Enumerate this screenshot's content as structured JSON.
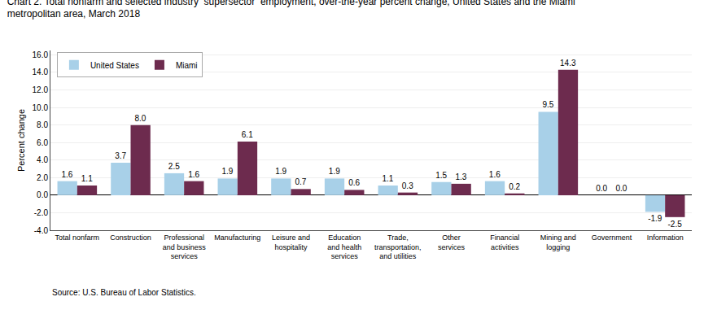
{
  "chart_data": {
    "type": "bar",
    "title": "Chart 2. Total nonfarm and selected industry  supersector  employment, over-the-year percent change, United States and the Miami\nmetropolitan area, March 2018",
    "ylabel": "Percent change",
    "annotations": [
      "Source: U.S. Bureau of Labor Statistics."
    ],
    "categories": [
      "Total nonfarm",
      "Construction",
      "Professional\nand business\nservices",
      "Manufacturing",
      "Leisure and\nhospitality",
      "Education\nand health\nservices",
      "Trade,\ntransportation,\nand utilities",
      "Other\nservices",
      "Financial\nactivities",
      "Mining and\nlogging",
      "Government",
      "Information"
    ],
    "series": [
      {
        "name": "United States",
        "color": "#a8d0e8",
        "values": [
          1.6,
          3.7,
          2.5,
          1.9,
          1.9,
          1.9,
          1.1,
          1.5,
          1.6,
          9.5,
          0.0,
          -1.9
        ],
        "value_labels": [
          "1.6",
          "3.7",
          "2.5",
          "1.9",
          "1.9",
          "1.9",
          "1.1",
          "1.5",
          "1.6",
          "9.5",
          "0.0",
          "-1.9"
        ]
      },
      {
        "name": "Miami",
        "color": "#6d2b4e",
        "values": [
          1.1,
          8.0,
          1.6,
          6.1,
          0.7,
          0.6,
          0.3,
          1.3,
          0.2,
          14.3,
          0.0,
          -2.5
        ],
        "value_labels": [
          "1.1",
          "8.0",
          "1.6",
          "6.1",
          "0.7",
          "0.6",
          "0.3",
          "1.3",
          "0.2",
          "14.3",
          "0.0",
          "-2.5"
        ]
      }
    ],
    "ylim": [
      -4.0,
      16.5
    ],
    "yticks": [
      {
        "value": -4.0,
        "label": "-4.0"
      },
      {
        "value": -2.0,
        "label": "-2.0"
      },
      {
        "value": 0.0,
        "label": "0.0"
      },
      {
        "value": 2.0,
        "label": "2.0"
      },
      {
        "value": 4.0,
        "label": "4.0"
      },
      {
        "value": 6.0,
        "label": "6.0"
      },
      {
        "value": 8.0,
        "label": "8.0"
      },
      {
        "value": 10.0,
        "label": "10.0"
      },
      {
        "value": 12.0,
        "label": "12.0"
      },
      {
        "value": 14.0,
        "label": "14.0"
      },
      {
        "value": 16.0,
        "label": "16.0"
      }
    ],
    "grid": true,
    "legend": "upper left",
    "data_labels": true
  }
}
